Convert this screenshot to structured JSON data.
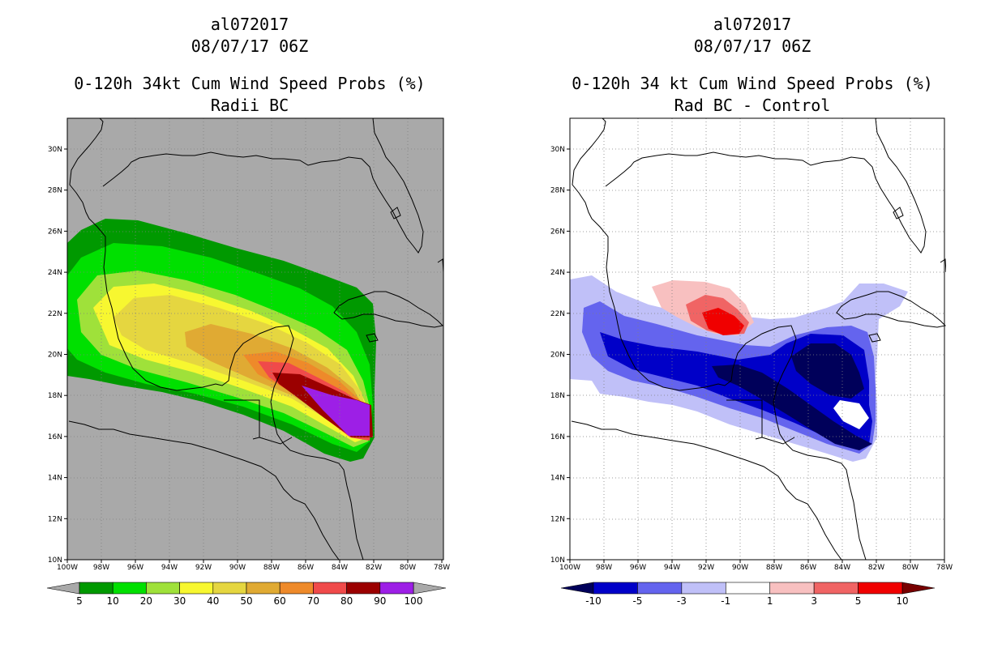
{
  "left": {
    "storm_id": "al072017",
    "datetime": "08/07/17 06Z",
    "title": "0-120h 34kt Cum Wind Speed Probs (%)",
    "subtitle": "Radii BC",
    "bg_color": "#a9a9a9",
    "colorbar": {
      "colors": [
        "#009900",
        "#00e000",
        "#9fe13a",
        "#f7f730",
        "#e5d640",
        "#e0aa33",
        "#ee8a2a",
        "#f04a4a",
        "#9b0000",
        "#9d1fe6"
      ],
      "labels": [
        "5",
        "10",
        "20",
        "30",
        "40",
        "50",
        "60",
        "70",
        "80",
        "90",
        "100"
      ],
      "end_colors": [
        "#a9a9a9",
        "#a9a9a9"
      ]
    }
  },
  "right": {
    "storm_id": "al072017",
    "datetime": "08/07/17 06Z",
    "title": "0-120h 34 kt Cum Wind Speed Probs (%)",
    "subtitle": "Rad BC - Control",
    "bg_color": "#ffffff",
    "colorbar": {
      "colors": [
        "#0000c8",
        "#6464ee",
        "#c0c0f8",
        "#ffffff",
        "#f8c0c0",
        "#f06464",
        "#f00000"
      ],
      "labels": [
        "-10",
        "-5",
        "-3",
        "-1",
        "1",
        "3",
        "5",
        "10"
      ],
      "end_colors": [
        "#00005a",
        "#780000"
      ]
    }
  },
  "axes": {
    "lon_labels": [
      "100W",
      "98W",
      "96W",
      "94W",
      "92W",
      "90W",
      "88W",
      "86W",
      "84W",
      "82W",
      "80W",
      "78W"
    ],
    "lat_labels": [
      "10N",
      "12N",
      "14N",
      "16N",
      "18N",
      "20N",
      "22N",
      "24N",
      "26N",
      "28N",
      "30N"
    ]
  }
}
